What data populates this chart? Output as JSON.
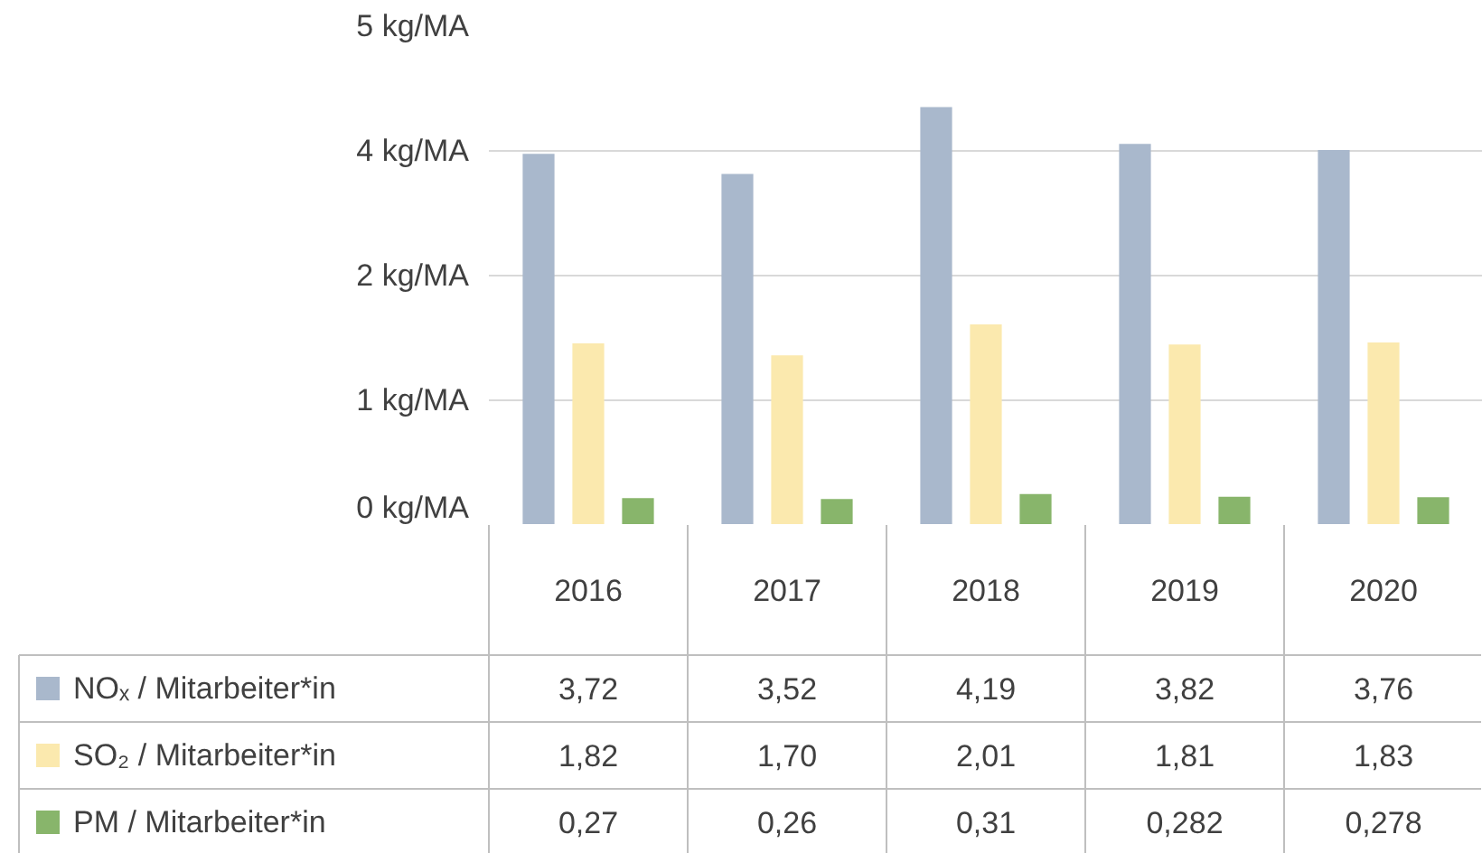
{
  "chart_data": {
    "type": "bar",
    "categories": [
      "2016",
      "2017",
      "2018",
      "2019",
      "2020"
    ],
    "series": [
      {
        "name": "NOₓ  / Mitarbeiter*in",
        "color": "#a9b8cc",
        "values": [
          3.72,
          3.52,
          4.19,
          3.82,
          3.76
        ],
        "value_labels": [
          "3,72",
          "3,52",
          "4,19",
          "3,82",
          "3,76"
        ]
      },
      {
        "name": "SO₂ / Mitarbeiter*in",
        "color": "#fbe9ae",
        "values": [
          1.82,
          1.7,
          2.01,
          1.81,
          1.83
        ],
        "value_labels": [
          "1,82",
          "1,70",
          "2,01",
          "1,81",
          "1,83"
        ]
      },
      {
        "name": "PM / Mitarbeiter*in",
        "color": "#88b56b",
        "values": [
          0.27,
          0.26,
          0.31,
          0.282,
          0.278
        ],
        "value_labels": [
          "0,27",
          "0,26",
          "0,31",
          "0,282",
          "0,278"
        ]
      }
    ],
    "ylim": [
      0,
      5
    ],
    "yticks": [
      {
        "value": 0,
        "label": "0 kg/MA"
      },
      {
        "value": 1.25,
        "label": "1 kg/MA"
      },
      {
        "value": 2.5,
        "label": "2 kg/MA"
      },
      {
        "value": 3.75,
        "label": "4 kg/MA"
      },
      {
        "value": 5,
        "label": "5 kg/MA"
      }
    ],
    "grid": "y",
    "legend": "bottom"
  }
}
